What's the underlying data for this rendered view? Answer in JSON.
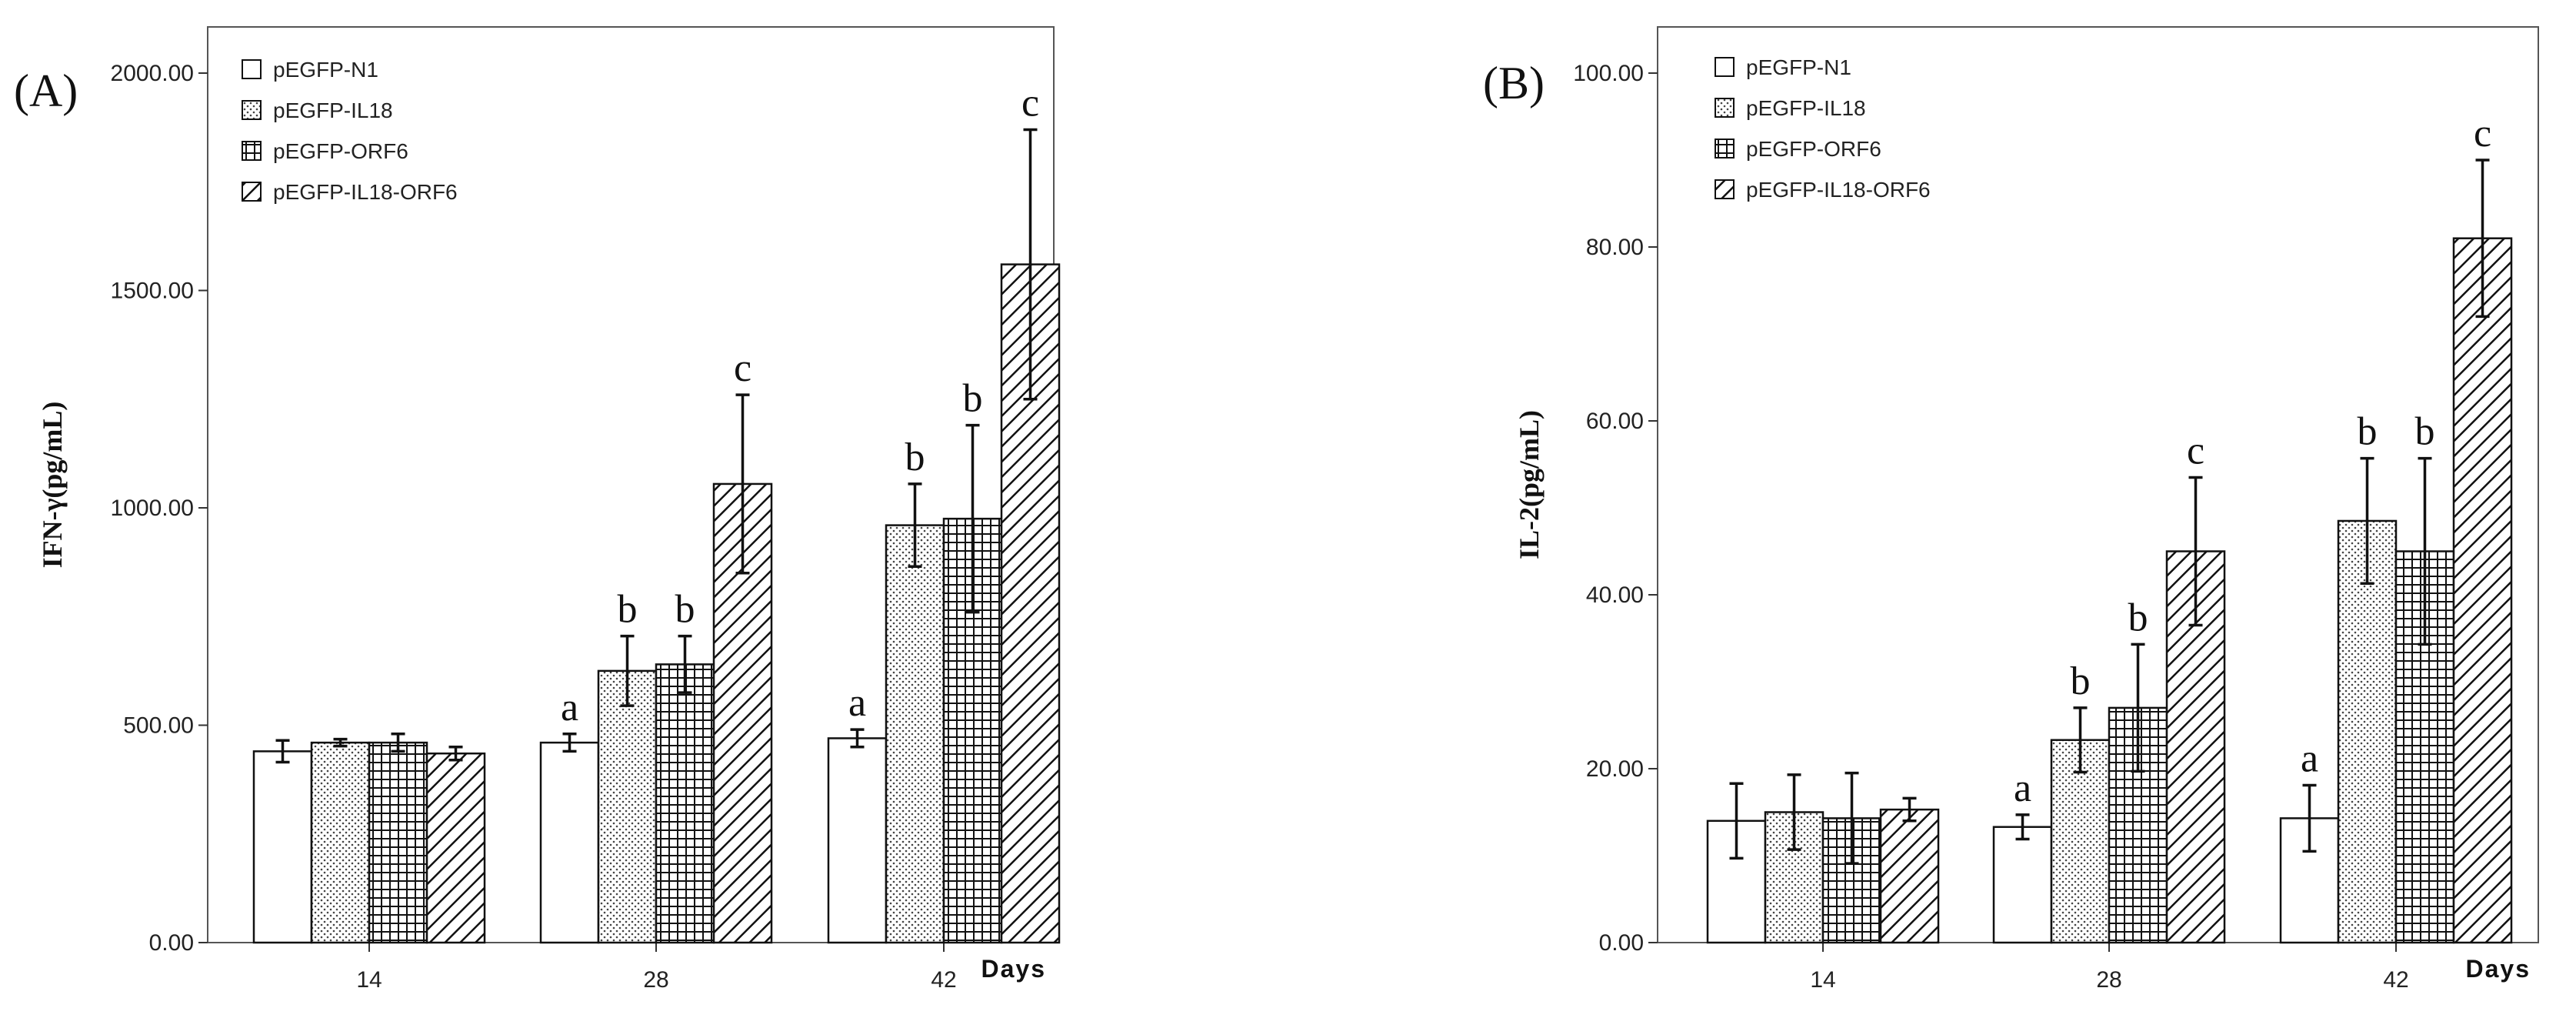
{
  "chart_data": [
    {
      "type": "bar",
      "panel_label": "(A)",
      "ylabel": "IFN-γ(pg/mL)",
      "xlabel": "Days",
      "categories": [
        "14",
        "28",
        "42"
      ],
      "ylim": [
        0,
        2000
      ],
      "yticks": [
        "0.00",
        "500.00",
        "1000.00",
        "1500.00",
        "2000.00"
      ],
      "ytick_values": [
        0,
        500,
        1000,
        1500,
        2000
      ],
      "grid": false,
      "legend_position": "top-left",
      "series": [
        {
          "name": "pEGFP-N1",
          "pattern": "plain",
          "values": [
            440,
            460,
            470
          ],
          "errors": [
            25,
            20,
            20
          ],
          "labels": [
            "",
            "a",
            "a"
          ]
        },
        {
          "name": "pEGFP-IL18",
          "pattern": "dots",
          "values": [
            460,
            625,
            960
          ],
          "errors": [
            8,
            80,
            95
          ],
          "labels": [
            "",
            "b",
            "b"
          ]
        },
        {
          "name": "pEGFP-ORF6",
          "pattern": "grid",
          "values": [
            460,
            640,
            975
          ],
          "errors": [
            20,
            65,
            215
          ],
          "labels": [
            "",
            "b",
            "b"
          ]
        },
        {
          "name": "pEGFP-IL18-ORF6",
          "pattern": "hatch",
          "values": [
            435,
            1055,
            1560
          ],
          "errors": [
            15,
            205,
            310
          ],
          "labels": [
            "",
            "c",
            "c"
          ]
        }
      ]
    },
    {
      "type": "bar",
      "panel_label": "(B)",
      "ylabel": "IL-2(pg/mL)",
      "xlabel": "Days",
      "categories": [
        "14",
        "28",
        "42"
      ],
      "ylim": [
        0,
        100
      ],
      "yticks": [
        "0.00",
        "20.00",
        "40.00",
        "60.00",
        "80.00",
        "100.00"
      ],
      "ytick_values": [
        0,
        20,
        40,
        60,
        80,
        100
      ],
      "grid": false,
      "legend_position": "top-left",
      "series": [
        {
          "name": "pEGFP-N1",
          "pattern": "plain",
          "values": [
            14.0,
            13.3,
            14.3
          ],
          "errors": [
            4.3,
            1.4,
            3.8
          ],
          "labels": [
            "",
            "a",
            "a"
          ]
        },
        {
          "name": "pEGFP-IL18",
          "pattern": "dots",
          "values": [
            15.0,
            23.3,
            48.5
          ],
          "errors": [
            4.3,
            3.7,
            7.2
          ],
          "labels": [
            "",
            "b",
            "b"
          ]
        },
        {
          "name": "pEGFP-ORF6",
          "pattern": "grid",
          "values": [
            14.3,
            27.0,
            45.0
          ],
          "errors": [
            5.2,
            7.3,
            10.7
          ],
          "labels": [
            "",
            "b",
            "b"
          ]
        },
        {
          "name": "pEGFP-IL18-ORF6",
          "pattern": "hatch",
          "values": [
            15.3,
            45.0,
            81.0
          ],
          "errors": [
            1.3,
            8.5,
            9.0
          ],
          "labels": [
            "",
            "c",
            "c"
          ]
        }
      ]
    }
  ]
}
